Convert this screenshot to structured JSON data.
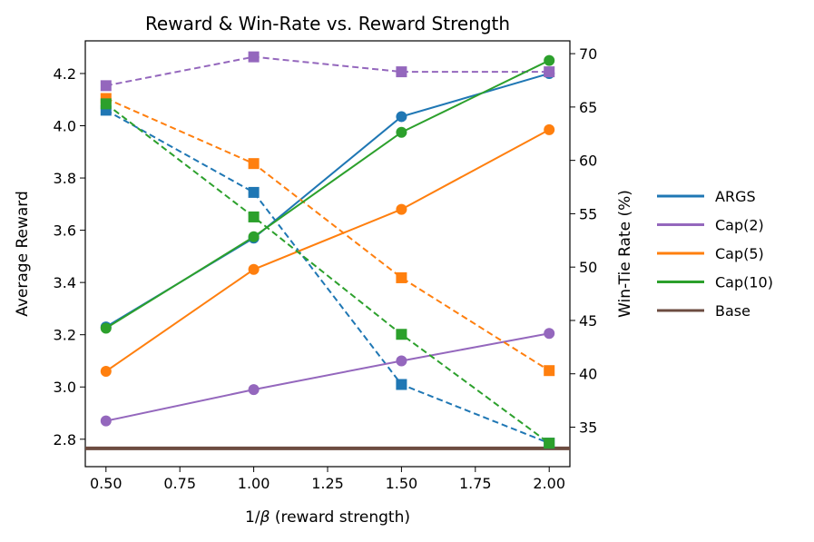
{
  "chart_data": {
    "type": "line",
    "title": "Reward & Win-Rate vs. Reward Strength",
    "xlabel_prefix": "1/",
    "xlabel_symbol": "β",
    "xlabel_suffix": " (reward strength)",
    "ylabel": "Average Reward",
    "y2label": "Win-Tie Rate (%)",
    "x": [
      0.5,
      1.0,
      1.5,
      2.0
    ],
    "xlim": [
      0.43,
      2.07
    ],
    "ylim": [
      2.695,
      4.325
    ],
    "y2lim": [
      31.3,
      71.2
    ],
    "xticks": [
      "0.50",
      "0.75",
      "1.00",
      "1.25",
      "1.50",
      "1.75",
      "2.00"
    ],
    "yticks": [
      "2.8",
      "3.0",
      "3.2",
      "3.4",
      "3.6",
      "3.8",
      "4.0",
      "4.2"
    ],
    "y2ticks": [
      "35",
      "40",
      "45",
      "50",
      "55",
      "60",
      "65",
      "70"
    ],
    "series": [
      {
        "name": "ARGS",
        "color": "#1f77b4",
        "reward": [
          3.23,
          3.57,
          4.035,
          4.2
        ],
        "win_tie": [
          64.7,
          57.0,
          39.0,
          33.5
        ]
      },
      {
        "name": "Cap(2)",
        "color": "#9467bd",
        "reward": [
          2.87,
          2.99,
          3.1,
          3.205
        ],
        "win_tie": [
          67.0,
          69.7,
          68.3,
          68.3
        ]
      },
      {
        "name": "Cap(5)",
        "color": "#ff7f0e",
        "reward": [
          3.06,
          3.45,
          3.68,
          3.985
        ],
        "win_tie": [
          65.8,
          59.7,
          49.0,
          40.3
        ]
      },
      {
        "name": "Cap(10)",
        "color": "#2ca02c",
        "reward": [
          3.225,
          3.575,
          3.975,
          4.25
        ],
        "win_tie": [
          65.3,
          54.7,
          43.7,
          33.5
        ]
      }
    ],
    "base": {
      "name": "Base",
      "color": "#6d4c41",
      "reward": 2.765
    },
    "legend_position": "right-outside"
  }
}
